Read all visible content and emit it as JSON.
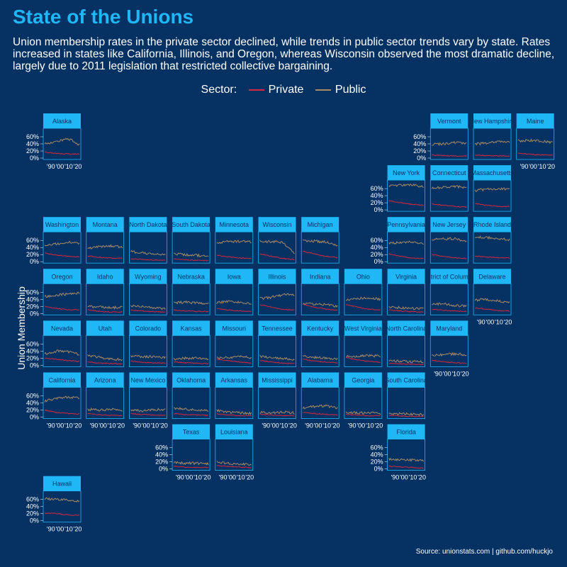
{
  "title": "State of the Unions",
  "subtitle": "Union membership rates in the private sector declined, while trends in public sector trends vary by state. Rates increased in states like California, Illinois, and Oregon, whereas Wisconsin observed the most dramatic decline, largely due to 2011 legislation that restricted collective bargaining.",
  "legend": {
    "label": "Sector:",
    "private": "Private",
    "public": "Public"
  },
  "ylabel": "Union Membership",
  "source": "Source: unionstats.com | github.com/huckjo",
  "colors": {
    "private": "#d7263d",
    "public": "#a98a63",
    "panel_border": "#1fb7f5",
    "strip": "#1fb7f5",
    "background": "#053163"
  },
  "chart_data": {
    "type": "line",
    "x_tick_labels": [
      "'90",
      "'00",
      "'10",
      "'20"
    ],
    "y_tick_labels": [
      "0%",
      "20%",
      "40%",
      "60%"
    ],
    "ylim": [
      0,
      0.8
    ],
    "xlim": [
      1983,
      2022
    ],
    "panels": [
      {
        "state": "Alaska",
        "col": 0,
        "row": 0,
        "private": [
          0.17,
          0.13,
          0.12,
          0.11
        ],
        "public": [
          0.42,
          0.45,
          0.55,
          0.38
        ]
      },
      {
        "state": "Vermont",
        "col": 9,
        "row": 0,
        "private": [
          0.08,
          0.07,
          0.06,
          0.06
        ],
        "public": [
          0.38,
          0.4,
          0.44,
          0.42
        ]
      },
      {
        "state": "New Hampshire",
        "col": 10,
        "row": 0,
        "private": [
          0.08,
          0.07,
          0.06,
          0.06
        ],
        "public": [
          0.4,
          0.42,
          0.48,
          0.45
        ]
      },
      {
        "state": "Maine",
        "col": 11,
        "row": 0,
        "private": [
          0.14,
          0.11,
          0.09,
          0.08
        ],
        "public": [
          0.48,
          0.5,
          0.48,
          0.44
        ]
      },
      {
        "state": "New York",
        "col": 8,
        "row": 1,
        "private": [
          0.26,
          0.2,
          0.16,
          0.13
        ],
        "public": [
          0.68,
          0.7,
          0.7,
          0.66
        ]
      },
      {
        "state": "Connecticut",
        "col": 9,
        "row": 1,
        "private": [
          0.17,
          0.13,
          0.1,
          0.08
        ],
        "public": [
          0.62,
          0.64,
          0.66,
          0.62
        ]
      },
      {
        "state": "Massachusetts",
        "col": 10,
        "row": 1,
        "private": [
          0.18,
          0.13,
          0.1,
          0.09
        ],
        "public": [
          0.55,
          0.58,
          0.6,
          0.58
        ]
      },
      {
        "state": "Washington",
        "col": 0,
        "row": 2,
        "private": [
          0.24,
          0.19,
          0.15,
          0.14
        ],
        "public": [
          0.48,
          0.5,
          0.55,
          0.52
        ]
      },
      {
        "state": "Montana",
        "col": 1,
        "row": 2,
        "private": [
          0.16,
          0.12,
          0.1,
          0.09
        ],
        "public": [
          0.38,
          0.42,
          0.45,
          0.4
        ]
      },
      {
        "state": "North Dakota",
        "col": 2,
        "row": 2,
        "private": [
          0.08,
          0.06,
          0.05,
          0.04
        ],
        "public": [
          0.28,
          0.25,
          0.22,
          0.2
        ]
      },
      {
        "state": "South Dakota",
        "col": 3,
        "row": 2,
        "private": [
          0.07,
          0.05,
          0.04,
          0.03
        ],
        "public": [
          0.22,
          0.2,
          0.18,
          0.16
        ]
      },
      {
        "state": "Minnesota",
        "col": 4,
        "row": 2,
        "private": [
          0.18,
          0.14,
          0.1,
          0.09
        ],
        "public": [
          0.55,
          0.56,
          0.58,
          0.55
        ]
      },
      {
        "state": "Wisconsin",
        "col": 5,
        "row": 2,
        "private": [
          0.22,
          0.15,
          0.09,
          0.06
        ],
        "public": [
          0.58,
          0.56,
          0.55,
          0.22
        ]
      },
      {
        "state": "Michigan",
        "col": 6,
        "row": 2,
        "private": [
          0.3,
          0.22,
          0.15,
          0.12
        ],
        "public": [
          0.6,
          0.58,
          0.55,
          0.45
        ]
      },
      {
        "state": "Pennsylvania",
        "col": 8,
        "row": 2,
        "private": [
          0.22,
          0.15,
          0.1,
          0.09
        ],
        "public": [
          0.52,
          0.54,
          0.55,
          0.5
        ]
      },
      {
        "state": "New Jersey",
        "col": 9,
        "row": 2,
        "private": [
          0.2,
          0.15,
          0.11,
          0.09
        ],
        "public": [
          0.62,
          0.64,
          0.65,
          0.58
        ]
      },
      {
        "state": "Rhode Island",
        "col": 10,
        "row": 2,
        "private": [
          0.16,
          0.13,
          0.11,
          0.1
        ],
        "public": [
          0.7,
          0.68,
          0.66,
          0.62
        ]
      },
      {
        "state": "Oregon",
        "col": 0,
        "row": 3,
        "private": [
          0.2,
          0.14,
          0.11,
          0.1
        ],
        "public": [
          0.48,
          0.52,
          0.55,
          0.58
        ]
      },
      {
        "state": "Idaho",
        "col": 1,
        "row": 3,
        "private": [
          0.1,
          0.06,
          0.04,
          0.04
        ],
        "public": [
          0.2,
          0.18,
          0.16,
          0.18
        ]
      },
      {
        "state": "Wyoming",
        "col": 2,
        "row": 3,
        "private": [
          0.1,
          0.07,
          0.05,
          0.04
        ],
        "public": [
          0.22,
          0.2,
          0.15,
          0.14
        ]
      },
      {
        "state": "Nebraska",
        "col": 3,
        "row": 3,
        "private": [
          0.1,
          0.07,
          0.06,
          0.05
        ],
        "public": [
          0.3,
          0.32,
          0.3,
          0.28
        ]
      },
      {
        "state": "Iowa",
        "col": 4,
        "row": 3,
        "private": [
          0.14,
          0.1,
          0.07,
          0.06
        ],
        "public": [
          0.3,
          0.35,
          0.32,
          0.26
        ]
      },
      {
        "state": "Illinois",
        "col": 5,
        "row": 3,
        "private": [
          0.24,
          0.18,
          0.12,
          0.1
        ],
        "public": [
          0.42,
          0.46,
          0.52,
          0.54
        ]
      },
      {
        "state": "Indiana",
        "col": 6,
        "row": 3,
        "private": [
          0.26,
          0.18,
          0.12,
          0.09
        ],
        "public": [
          0.28,
          0.26,
          0.25,
          0.2
        ]
      },
      {
        "state": "Ohio",
        "col": 7,
        "row": 3,
        "private": [
          0.25,
          0.18,
          0.12,
          0.1
        ],
        "public": [
          0.38,
          0.42,
          0.44,
          0.4
        ]
      },
      {
        "state": "Virginia",
        "col": 8,
        "row": 3,
        "private": [
          0.1,
          0.07,
          0.05,
          0.04
        ],
        "public": [
          0.18,
          0.16,
          0.14,
          0.13
        ]
      },
      {
        "state": "District of Columbia",
        "col": 9,
        "row": 3,
        "private": [
          0.12,
          0.09,
          0.07,
          0.06
        ],
        "public": [
          0.25,
          0.28,
          0.22,
          0.22
        ]
      },
      {
        "state": "Delaware",
        "col": 10,
        "row": 3,
        "private": [
          0.16,
          0.12,
          0.08,
          0.07
        ],
        "public": [
          0.38,
          0.4,
          0.35,
          0.32
        ]
      },
      {
        "state": "Nevada",
        "col": 0,
        "row": 4,
        "private": [
          0.2,
          0.17,
          0.13,
          0.11
        ],
        "public": [
          0.32,
          0.4,
          0.38,
          0.3
        ]
      },
      {
        "state": "Utah",
        "col": 1,
        "row": 4,
        "private": [
          0.1,
          0.06,
          0.05,
          0.04
        ],
        "public": [
          0.28,
          0.22,
          0.18,
          0.16
        ]
      },
      {
        "state": "Colorado",
        "col": 2,
        "row": 4,
        "private": [
          0.12,
          0.08,
          0.07,
          0.06
        ],
        "public": [
          0.26,
          0.24,
          0.24,
          0.22
        ]
      },
      {
        "state": "Kansas",
        "col": 3,
        "row": 4,
        "private": [
          0.1,
          0.07,
          0.06,
          0.05
        ],
        "public": [
          0.18,
          0.2,
          0.2,
          0.17
        ]
      },
      {
        "state": "Missouri",
        "col": 4,
        "row": 4,
        "private": [
          0.18,
          0.13,
          0.09,
          0.07
        ],
        "public": [
          0.2,
          0.22,
          0.24,
          0.22
        ]
      },
      {
        "state": "Tennessee",
        "col": 5,
        "row": 4,
        "private": [
          0.14,
          0.09,
          0.06,
          0.05
        ],
        "public": [
          0.26,
          0.22,
          0.2,
          0.16
        ]
      },
      {
        "state": "Kentucky",
        "col": 6,
        "row": 4,
        "private": [
          0.18,
          0.12,
          0.09,
          0.07
        ],
        "public": [
          0.25,
          0.22,
          0.2,
          0.18
        ]
      },
      {
        "state": "West Virginia",
        "col": 7,
        "row": 4,
        "private": [
          0.22,
          0.15,
          0.11,
          0.09
        ],
        "public": [
          0.25,
          0.26,
          0.28,
          0.25
        ]
      },
      {
        "state": "North Carolina",
        "col": 8,
        "row": 4,
        "private": [
          0.06,
          0.04,
          0.03,
          0.02
        ],
        "public": [
          0.12,
          0.12,
          0.1,
          0.1
        ]
      },
      {
        "state": "Maryland",
        "col": 9,
        "row": 4,
        "private": [
          0.14,
          0.1,
          0.07,
          0.06
        ],
        "public": [
          0.28,
          0.3,
          0.32,
          0.3
        ]
      },
      {
        "state": "California",
        "col": 0,
        "row": 5,
        "private": [
          0.2,
          0.13,
          0.1,
          0.09
        ],
        "public": [
          0.45,
          0.52,
          0.56,
          0.54
        ]
      },
      {
        "state": "Arizona",
        "col": 1,
        "row": 5,
        "private": [
          0.1,
          0.06,
          0.05,
          0.04
        ],
        "public": [
          0.22,
          0.2,
          0.22,
          0.18
        ]
      },
      {
        "state": "New Mexico",
        "col": 2,
        "row": 5,
        "private": [
          0.1,
          0.07,
          0.06,
          0.05
        ],
        "public": [
          0.2,
          0.18,
          0.22,
          0.2
        ]
      },
      {
        "state": "Oklahoma",
        "col": 3,
        "row": 5,
        "private": [
          0.1,
          0.07,
          0.06,
          0.05
        ],
        "public": [
          0.25,
          0.22,
          0.2,
          0.18
        ]
      },
      {
        "state": "Arkansas",
        "col": 4,
        "row": 5,
        "private": [
          0.09,
          0.06,
          0.04,
          0.03
        ],
        "public": [
          0.18,
          0.14,
          0.12,
          0.1
        ]
      },
      {
        "state": "Mississippi",
        "col": 5,
        "row": 5,
        "private": [
          0.08,
          0.06,
          0.04,
          0.04
        ],
        "public": [
          0.14,
          0.12,
          0.14,
          0.12
        ]
      },
      {
        "state": "Alabama",
        "col": 6,
        "row": 5,
        "private": [
          0.14,
          0.1,
          0.08,
          0.06
        ],
        "public": [
          0.25,
          0.3,
          0.32,
          0.26
        ]
      },
      {
        "state": "Georgia",
        "col": 7,
        "row": 5,
        "private": [
          0.08,
          0.06,
          0.04,
          0.04
        ],
        "public": [
          0.14,
          0.12,
          0.12,
          0.1
        ]
      },
      {
        "state": "South Carolina",
        "col": 8,
        "row": 5,
        "private": [
          0.05,
          0.03,
          0.02,
          0.02
        ],
        "public": [
          0.1,
          0.1,
          0.08,
          0.07
        ]
      },
      {
        "state": "Texas",
        "col": 3,
        "row": 6,
        "private": [
          0.08,
          0.05,
          0.04,
          0.04
        ],
        "public": [
          0.18,
          0.16,
          0.16,
          0.15
        ]
      },
      {
        "state": "Louisiana",
        "col": 4,
        "row": 6,
        "private": [
          0.1,
          0.07,
          0.05,
          0.04
        ],
        "public": [
          0.2,
          0.16,
          0.14,
          0.12
        ]
      },
      {
        "state": "Florida",
        "col": 8,
        "row": 6,
        "private": [
          0.08,
          0.05,
          0.04,
          0.03
        ],
        "public": [
          0.28,
          0.26,
          0.25,
          0.24
        ]
      },
      {
        "state": "Hawaii",
        "col": 0,
        "row": 7,
        "private": [
          0.22,
          0.2,
          0.17,
          0.15
        ],
        "public": [
          0.62,
          0.6,
          0.58,
          0.56
        ]
      }
    ]
  }
}
